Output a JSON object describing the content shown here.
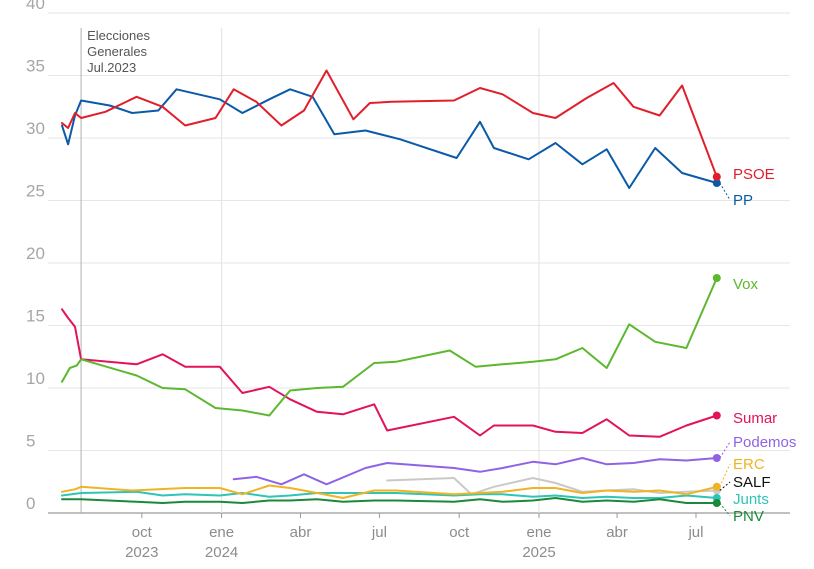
{
  "chart_data": {
    "type": "line",
    "title": "",
    "xlabel": "",
    "ylabel": "",
    "ylim": [
      0,
      40
    ],
    "xlim": [
      "2023-07-01",
      "2025-07-31"
    ],
    "grid": true,
    "y_ticks": [
      "0",
      "5",
      "10",
      "15",
      "20",
      "25",
      "30",
      "35",
      "40"
    ],
    "x_ticks": [
      {
        "date": "2023-10-01",
        "label": "oct",
        "year": "2023"
      },
      {
        "date": "2024-01-01",
        "label": "ene",
        "year": "2024"
      },
      {
        "date": "2024-04-01",
        "label": "abr",
        "year": ""
      },
      {
        "date": "2024-07-01",
        "label": "jul",
        "year": ""
      },
      {
        "date": "2024-10-01",
        "label": "oct",
        "year": ""
      },
      {
        "date": "2025-01-01",
        "label": "ene",
        "year": "2025"
      },
      {
        "date": "2025-04-01",
        "label": "abr",
        "year": ""
      },
      {
        "date": "2025-07-01",
        "label": "jul",
        "year": ""
      }
    ],
    "annotation": {
      "date": "2023-07-23",
      "lines": [
        "Elecciones",
        "Generales",
        "Jul.2023"
      ]
    },
    "series": [
      {
        "name": "PSOE",
        "color": "#e01f2b",
        "end_dot": true,
        "points": [
          [
            "2023-07-01",
            31.2
          ],
          [
            "2023-07-08",
            30.8
          ],
          [
            "2023-07-16",
            32.0
          ],
          [
            "2023-07-23",
            31.6
          ],
          [
            "2023-08-20",
            32.1
          ],
          [
            "2023-09-25",
            33.3
          ],
          [
            "2023-10-25",
            32.5
          ],
          [
            "2023-11-20",
            31.0
          ],
          [
            "2023-12-25",
            31.6
          ],
          [
            "2024-01-15",
            33.9
          ],
          [
            "2024-02-10",
            32.9
          ],
          [
            "2024-03-10",
            31.0
          ],
          [
            "2024-04-05",
            32.2
          ],
          [
            "2024-05-01",
            35.4
          ],
          [
            "2024-06-01",
            31.5
          ],
          [
            "2024-06-20",
            32.8
          ],
          [
            "2024-07-15",
            32.9
          ],
          [
            "2024-09-25",
            33.0
          ],
          [
            "2024-10-25",
            34.0
          ],
          [
            "2024-11-20",
            33.5
          ],
          [
            "2024-12-25",
            32.0
          ],
          [
            "2025-01-20",
            31.6
          ],
          [
            "2025-02-25",
            33.2
          ],
          [
            "2025-03-28",
            34.4
          ],
          [
            "2025-04-20",
            32.5
          ],
          [
            "2025-05-20",
            31.8
          ],
          [
            "2025-06-15",
            34.2
          ],
          [
            "2025-07-25",
            26.9
          ]
        ]
      },
      {
        "name": "PP",
        "color": "#0b5aa8",
        "end_dot": true,
        "points": [
          [
            "2023-07-01",
            31.0
          ],
          [
            "2023-07-08",
            29.5
          ],
          [
            "2023-07-16",
            31.8
          ],
          [
            "2023-07-23",
            33.0
          ],
          [
            "2023-08-25",
            32.6
          ],
          [
            "2023-09-20",
            32.0
          ],
          [
            "2023-10-20",
            32.2
          ],
          [
            "2023-11-10",
            33.9
          ],
          [
            "2023-12-30",
            33.1
          ],
          [
            "2024-01-25",
            32.0
          ],
          [
            "2024-02-25",
            33.1
          ],
          [
            "2024-03-20",
            33.9
          ],
          [
            "2024-04-15",
            33.3
          ],
          [
            "2024-05-10",
            30.3
          ],
          [
            "2024-06-15",
            30.6
          ],
          [
            "2024-07-25",
            29.9
          ],
          [
            "2024-09-28",
            28.4
          ],
          [
            "2024-10-25",
            31.3
          ],
          [
            "2024-11-10",
            29.2
          ],
          [
            "2024-12-20",
            28.3
          ],
          [
            "2025-01-20",
            29.6
          ],
          [
            "2025-02-20",
            27.9
          ],
          [
            "2025-03-20",
            29.1
          ],
          [
            "2025-04-15",
            26.0
          ],
          [
            "2025-05-15",
            29.2
          ],
          [
            "2025-06-15",
            27.2
          ],
          [
            "2025-07-25",
            26.4
          ]
        ]
      },
      {
        "name": "Vox",
        "color": "#5cb82e",
        "end_dot": true,
        "points": [
          [
            "2023-07-01",
            10.5
          ],
          [
            "2023-07-10",
            11.6
          ],
          [
            "2023-07-18",
            11.8
          ],
          [
            "2023-07-23",
            12.3
          ],
          [
            "2023-09-25",
            11.0
          ],
          [
            "2023-10-25",
            10.0
          ],
          [
            "2023-11-20",
            9.9
          ],
          [
            "2023-12-25",
            8.4
          ],
          [
            "2024-01-25",
            8.2
          ],
          [
            "2024-02-25",
            7.8
          ],
          [
            "2024-03-20",
            9.8
          ],
          [
            "2024-04-20",
            10.0
          ],
          [
            "2024-05-20",
            10.1
          ],
          [
            "2024-06-25",
            12.0
          ],
          [
            "2024-07-20",
            12.1
          ],
          [
            "2024-09-20",
            13.0
          ],
          [
            "2024-10-20",
            11.7
          ],
          [
            "2024-11-20",
            11.9
          ],
          [
            "2024-12-25",
            12.1
          ],
          [
            "2025-01-20",
            12.3
          ],
          [
            "2025-02-20",
            13.2
          ],
          [
            "2025-03-20",
            11.6
          ],
          [
            "2025-04-15",
            15.1
          ],
          [
            "2025-05-15",
            13.7
          ],
          [
            "2025-06-20",
            13.2
          ],
          [
            "2025-07-25",
            18.8
          ]
        ]
      },
      {
        "name": "Sumar",
        "color": "#e3125c",
        "end_dot": true,
        "points": [
          [
            "2023-07-01",
            16.3
          ],
          [
            "2023-07-08",
            15.6
          ],
          [
            "2023-07-16",
            14.9
          ],
          [
            "2023-07-23",
            12.3
          ],
          [
            "2023-09-25",
            11.9
          ],
          [
            "2023-10-25",
            12.7
          ],
          [
            "2023-11-20",
            11.7
          ],
          [
            "2023-12-30",
            11.7
          ],
          [
            "2024-01-25",
            9.6
          ],
          [
            "2024-02-25",
            10.1
          ],
          [
            "2024-03-20",
            9.1
          ],
          [
            "2024-04-20",
            8.1
          ],
          [
            "2024-05-20",
            7.9
          ],
          [
            "2024-06-25",
            8.7
          ],
          [
            "2024-07-10",
            6.6
          ],
          [
            "2024-09-25",
            7.7
          ],
          [
            "2024-10-25",
            6.2
          ],
          [
            "2024-11-10",
            7.0
          ],
          [
            "2024-12-25",
            7.0
          ],
          [
            "2025-01-20",
            6.5
          ],
          [
            "2025-02-20",
            6.4
          ],
          [
            "2025-03-20",
            7.5
          ],
          [
            "2025-04-15",
            6.2
          ],
          [
            "2025-05-20",
            6.1
          ],
          [
            "2025-06-20",
            7.0
          ],
          [
            "2025-07-25",
            7.8
          ]
        ]
      },
      {
        "name": "Podemos",
        "color": "#8f63e6",
        "end_dot": true,
        "points": [
          [
            "2024-01-15",
            2.7
          ],
          [
            "2024-02-10",
            2.9
          ],
          [
            "2024-03-10",
            2.3
          ],
          [
            "2024-04-05",
            3.1
          ],
          [
            "2024-05-01",
            2.3
          ],
          [
            "2024-06-15",
            3.6
          ],
          [
            "2024-07-10",
            4.0
          ],
          [
            "2024-09-25",
            3.6
          ],
          [
            "2024-10-25",
            3.3
          ],
          [
            "2024-11-20",
            3.6
          ],
          [
            "2024-12-25",
            4.1
          ],
          [
            "2025-01-20",
            3.9
          ],
          [
            "2025-02-20",
            4.4
          ],
          [
            "2025-03-20",
            3.9
          ],
          [
            "2025-04-20",
            4.0
          ],
          [
            "2025-05-20",
            4.3
          ],
          [
            "2025-06-20",
            4.2
          ],
          [
            "2025-07-25",
            4.4
          ]
        ]
      },
      {
        "name": "SALF",
        "color": "#c9c9c9",
        "end_dot": true,
        "points": [
          [
            "2024-07-10",
            2.6
          ],
          [
            "2024-09-25",
            2.8
          ],
          [
            "2024-10-15",
            1.5
          ],
          [
            "2024-11-10",
            2.1
          ],
          [
            "2024-12-25",
            2.8
          ],
          [
            "2025-01-20",
            2.4
          ],
          [
            "2025-02-20",
            1.7
          ],
          [
            "2025-03-20",
            1.8
          ],
          [
            "2025-04-20",
            1.9
          ],
          [
            "2025-05-20",
            1.6
          ],
          [
            "2025-06-20",
            1.7
          ],
          [
            "2025-07-25",
            1.8
          ]
        ]
      },
      {
        "name": "ERC",
        "color": "#f0b323",
        "end_dot": true,
        "points": [
          [
            "2023-07-01",
            1.7
          ],
          [
            "2023-07-16",
            1.9
          ],
          [
            "2023-07-23",
            2.1
          ],
          [
            "2023-09-20",
            1.8
          ],
          [
            "2023-10-20",
            1.9
          ],
          [
            "2023-11-20",
            2.0
          ],
          [
            "2023-12-30",
            2.0
          ],
          [
            "2024-01-25",
            1.5
          ],
          [
            "2024-02-25",
            2.2
          ],
          [
            "2024-03-20",
            2.0
          ],
          [
            "2024-04-20",
            1.6
          ],
          [
            "2024-05-20",
            1.2
          ],
          [
            "2024-06-25",
            1.8
          ],
          [
            "2024-07-20",
            1.8
          ],
          [
            "2024-09-25",
            1.5
          ],
          [
            "2024-10-25",
            1.6
          ],
          [
            "2024-11-20",
            1.7
          ],
          [
            "2024-12-25",
            2.0
          ],
          [
            "2025-01-20",
            2.0
          ],
          [
            "2025-02-20",
            1.6
          ],
          [
            "2025-03-20",
            1.8
          ],
          [
            "2025-04-20",
            1.7
          ],
          [
            "2025-05-20",
            1.8
          ],
          [
            "2025-06-20",
            1.5
          ],
          [
            "2025-07-25",
            2.1
          ]
        ]
      },
      {
        "name": "Junts",
        "color": "#2ec4b6",
        "end_dot": true,
        "points": [
          [
            "2023-07-01",
            1.4
          ],
          [
            "2023-07-23",
            1.6
          ],
          [
            "2023-09-25",
            1.7
          ],
          [
            "2023-10-25",
            1.4
          ],
          [
            "2023-11-20",
            1.5
          ],
          [
            "2023-12-30",
            1.4
          ],
          [
            "2024-01-25",
            1.6
          ],
          [
            "2024-02-25",
            1.3
          ],
          [
            "2024-03-20",
            1.4
          ],
          [
            "2024-04-20",
            1.6
          ],
          [
            "2024-05-20",
            1.6
          ],
          [
            "2024-06-25",
            1.6
          ],
          [
            "2024-07-20",
            1.6
          ],
          [
            "2024-09-25",
            1.4
          ],
          [
            "2024-10-25",
            1.5
          ],
          [
            "2024-11-20",
            1.5
          ],
          [
            "2024-12-25",
            1.3
          ],
          [
            "2025-01-20",
            1.4
          ],
          [
            "2025-02-20",
            1.2
          ],
          [
            "2025-03-20",
            1.3
          ],
          [
            "2025-04-20",
            1.2
          ],
          [
            "2025-05-20",
            1.2
          ],
          [
            "2025-06-20",
            1.4
          ],
          [
            "2025-07-25",
            1.2
          ]
        ]
      },
      {
        "name": "PNV",
        "color": "#1a8a3a",
        "end_dot": true,
        "points": [
          [
            "2023-07-01",
            1.1
          ],
          [
            "2023-07-23",
            1.1
          ],
          [
            "2023-09-25",
            0.9
          ],
          [
            "2023-10-25",
            0.8
          ],
          [
            "2023-11-20",
            0.9
          ],
          [
            "2023-12-30",
            0.9
          ],
          [
            "2024-01-25",
            0.8
          ],
          [
            "2024-02-25",
            1.0
          ],
          [
            "2024-03-20",
            1.0
          ],
          [
            "2024-04-20",
            1.1
          ],
          [
            "2024-05-20",
            0.9
          ],
          [
            "2024-06-25",
            1.0
          ],
          [
            "2024-07-20",
            1.0
          ],
          [
            "2024-09-25",
            0.9
          ],
          [
            "2024-10-25",
            1.1
          ],
          [
            "2024-11-20",
            0.9
          ],
          [
            "2024-12-25",
            1.0
          ],
          [
            "2025-01-20",
            1.2
          ],
          [
            "2025-02-20",
            0.9
          ],
          [
            "2025-03-20",
            1.0
          ],
          [
            "2025-04-20",
            0.9
          ],
          [
            "2025-05-20",
            1.1
          ],
          [
            "2025-06-20",
            0.8
          ],
          [
            "2025-07-25",
            0.8
          ]
        ]
      }
    ]
  }
}
